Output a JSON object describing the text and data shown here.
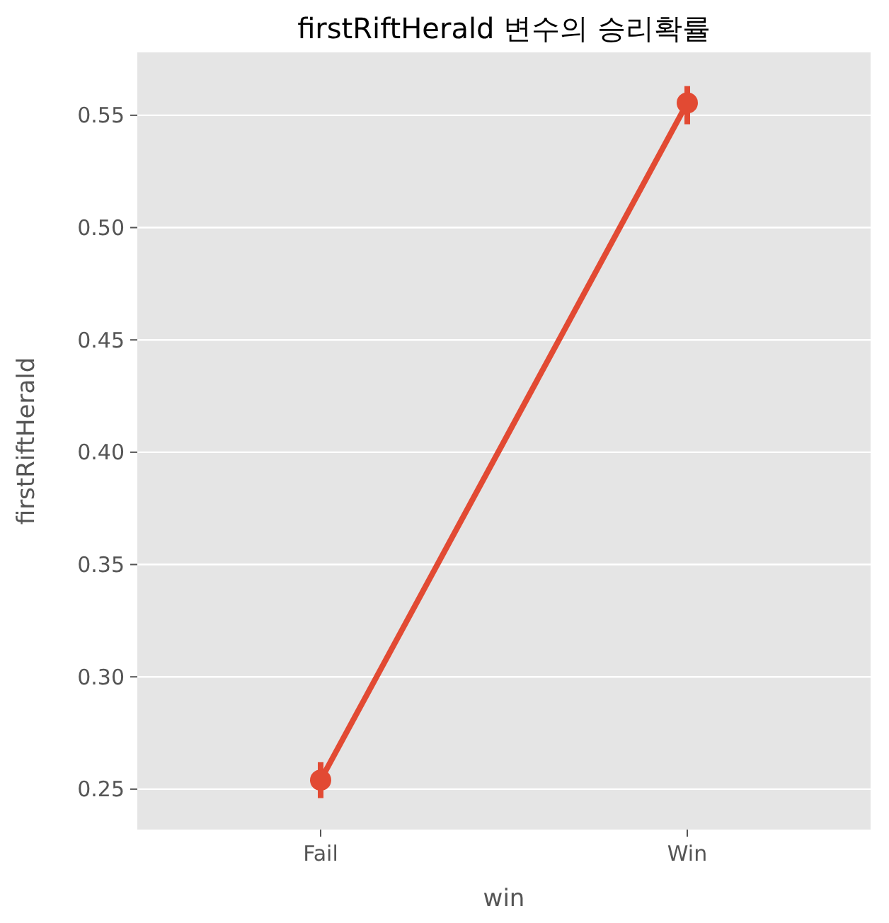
{
  "chart_data": {
    "type": "line",
    "title": "firstRiftHerald 변수의 승리확률",
    "xlabel": "win",
    "ylabel": "firstRiftHerald",
    "categories": [
      "Fail",
      "Win"
    ],
    "series": [
      {
        "color": "#e24a33",
        "values": [
          0.254,
          0.5555
        ],
        "errors": [
          [
            0.246,
            0.262
          ],
          [
            0.546,
            0.563
          ]
        ]
      }
    ],
    "ylim": [
      0.232,
      0.578
    ],
    "yticks": [
      0.25,
      {
        "value": 0.3,
        "label": "0.30"
      },
      0.35,
      {
        "value": 0.4,
        "label": "0.40"
      },
      0.45,
      {
        "value": 0.5,
        "label": "0.50"
      },
      0.55
    ],
    "grid": "y",
    "marker": "circle"
  }
}
